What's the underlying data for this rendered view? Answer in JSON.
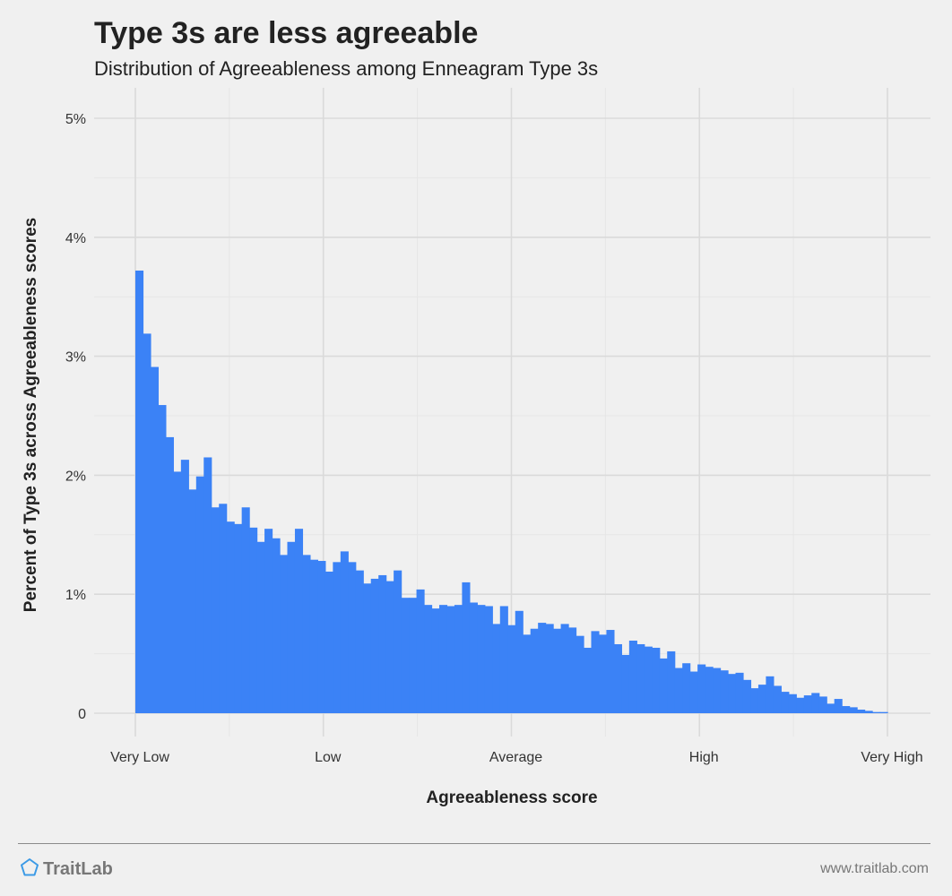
{
  "title": "Type 3s are less agreeable",
  "subtitle": "Distribution of Agreeableness among Enneagram Type 3s",
  "footer": {
    "brand": "TraitLab",
    "brand_icon": "pentagon-icon",
    "url": "www.traitlab.com"
  },
  "colors": {
    "bar": "#3b82f6",
    "background": "#f0f0f0",
    "grid_major": "#dadada",
    "grid_minor": "#e6e6e6",
    "brand_icon": "#3b9ae6"
  },
  "chart_data": {
    "type": "bar",
    "title": "Type 3s are less agreeable",
    "subtitle": "Distribution of Agreeableness among Enneagram Type 3s",
    "xlabel": "Agreeableness score",
    "ylabel": "Percent of Type 3s across Agreeableness scores",
    "xlim": [
      0,
      100
    ],
    "ylim": [
      0,
      5
    ],
    "x_ticks": [
      {
        "value": 0,
        "label": "Very Low"
      },
      {
        "value": 25,
        "label": "Low"
      },
      {
        "value": 50,
        "label": "Average"
      },
      {
        "value": 75,
        "label": "High"
      },
      {
        "value": 100,
        "label": "Very High"
      }
    ],
    "y_ticks": [
      {
        "value": 0,
        "label": "0"
      },
      {
        "value": 1,
        "label": "1%"
      },
      {
        "value": 2,
        "label": "2%"
      },
      {
        "value": 3,
        "label": "3%"
      },
      {
        "value": 4,
        "label": "4%"
      },
      {
        "value": 5,
        "label": "5%"
      }
    ],
    "grid": true,
    "legend": "none",
    "values": [
      3.72,
      3.19,
      2.91,
      2.59,
      2.32,
      2.03,
      2.13,
      1.88,
      1.99,
      2.15,
      1.73,
      1.76,
      1.61,
      1.59,
      1.73,
      1.56,
      1.44,
      1.55,
      1.47,
      1.33,
      1.44,
      1.55,
      1.33,
      1.29,
      1.28,
      1.19,
      1.27,
      1.36,
      1.27,
      1.2,
      1.09,
      1.13,
      1.16,
      1.11,
      1.2,
      0.97,
      0.97,
      1.04,
      0.91,
      0.88,
      0.91,
      0.9,
      0.91,
      1.1,
      0.93,
      0.91,
      0.9,
      0.75,
      0.9,
      0.74,
      0.86,
      0.66,
      0.71,
      0.76,
      0.75,
      0.71,
      0.75,
      0.72,
      0.65,
      0.55,
      0.69,
      0.66,
      0.7,
      0.58,
      0.49,
      0.61,
      0.58,
      0.56,
      0.55,
      0.46,
      0.52,
      0.38,
      0.42,
      0.35,
      0.41,
      0.39,
      0.38,
      0.36,
      0.33,
      0.34,
      0.28,
      0.21,
      0.24,
      0.31,
      0.23,
      0.18,
      0.16,
      0.13,
      0.15,
      0.17,
      0.14,
      0.08,
      0.12,
      0.06,
      0.05,
      0.03,
      0.02,
      0.01,
      0.01
    ]
  }
}
